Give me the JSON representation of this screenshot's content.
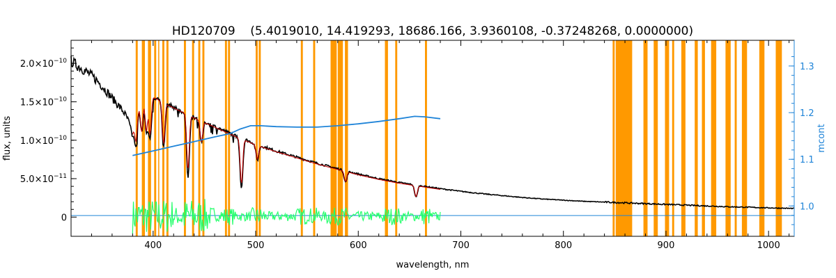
{
  "chart_data": {
    "type": "line",
    "title": "HD120709    (5.4019010, 14.419293, 18686.166, 3.9360108, -0.37248268, 0.0000000)",
    "xlabel": "wavelength, nm",
    "ylabel": "flux, units",
    "y2label": "mcont",
    "xlim": [
      320,
      1025
    ],
    "ylim": [
      -2.5e-11,
      2.3e-10
    ],
    "y2lim": [
      0.935,
      1.355
    ],
    "x_ticks": [
      400,
      500,
      600,
      700,
      800,
      900,
      1000
    ],
    "y_ticks": [
      {
        "value": 0,
        "mantissa": "0",
        "exp": ""
      },
      {
        "value": 5e-11,
        "mantissa": "5.0×10",
        "exp": "−11"
      },
      {
        "value": 1e-10,
        "mantissa": "1.0×10",
        "exp": "−10"
      },
      {
        "value": 1.5e-10,
        "mantissa": "1.5×10",
        "exp": "−10"
      },
      {
        "value": 2e-10,
        "mantissa": "2.0×10",
        "exp": "−10"
      }
    ],
    "y2_ticks": [
      {
        "value": 1.0,
        "label": "1.0"
      },
      {
        "value": 1.1,
        "label": "1.1"
      },
      {
        "value": 1.2,
        "label": "1.2"
      },
      {
        "value": 1.3,
        "label": "1.3"
      }
    ],
    "masked_regions": [
      [
        383,
        385
      ],
      [
        389,
        392
      ],
      [
        395,
        398
      ],
      [
        401,
        403
      ],
      [
        405,
        406
      ],
      [
        409,
        411
      ],
      [
        413,
        415
      ],
      [
        430,
        432
      ],
      [
        438,
        440
      ],
      [
        444,
        446
      ],
      [
        448,
        450
      ],
      [
        470,
        472
      ],
      [
        473,
        475
      ],
      [
        500,
        502
      ],
      [
        503,
        505
      ],
      [
        544,
        546
      ],
      [
        556,
        558
      ],
      [
        573,
        579
      ],
      [
        580,
        585
      ],
      [
        587,
        590
      ],
      [
        626,
        629
      ],
      [
        636,
        638
      ],
      [
        665,
        667
      ],
      [
        848,
        850
      ],
      [
        851,
        867
      ],
      [
        878,
        882
      ],
      [
        888,
        892
      ],
      [
        899,
        903
      ],
      [
        906,
        908
      ],
      [
        915,
        919
      ],
      [
        928,
        931
      ],
      [
        935,
        938
      ],
      [
        944,
        949
      ],
      [
        958,
        963
      ],
      [
        967,
        969
      ],
      [
        974,
        979
      ],
      [
        991,
        996
      ],
      [
        1007,
        1013
      ]
    ],
    "series": [
      {
        "role": "observed",
        "color": "#000000",
        "points": [
          [
            320,
            2.03e-10
          ],
          [
            325,
            1.98e-10
          ],
          [
            330,
            1.94e-10
          ],
          [
            335,
            1.89e-10
          ],
          [
            340,
            1.84e-10
          ],
          [
            345,
            1.78e-10
          ],
          [
            350,
            1.71e-10
          ],
          [
            355,
            1.63e-10
          ],
          [
            360,
            1.55e-10
          ],
          [
            365,
            1.47e-10
          ],
          [
            370,
            1.39e-10
          ],
          [
            373,
            1.33e-10
          ],
          [
            376,
            1.25e-10
          ],
          [
            378,
            1.15e-10
          ],
          [
            380,
            1.05e-10
          ],
          [
            382,
            1.15e-10
          ],
          [
            385,
            1.4e-10
          ],
          [
            388,
            1.55e-10
          ],
          [
            392,
            1.62e-10
          ],
          [
            396,
            1.58e-10
          ],
          [
            400,
            1.57e-10
          ],
          [
            410,
            1.5e-10
          ],
          [
            420,
            1.43e-10
          ],
          [
            430,
            1.36e-10
          ],
          [
            440,
            1.3e-10
          ],
          [
            450,
            1.24e-10
          ],
          [
            460,
            1.18e-10
          ],
          [
            470,
            1.12e-10
          ],
          [
            480,
            1.06e-10
          ],
          [
            490,
            1.01e-10
          ],
          [
            500,
            9.5e-11
          ],
          [
            520,
            8.6e-11
          ],
          [
            540,
            7.8e-11
          ],
          [
            560,
            7e-11
          ],
          [
            580,
            6.3e-11
          ],
          [
            600,
            5.6e-11
          ],
          [
            620,
            5e-11
          ],
          [
            640,
            4.5e-11
          ],
          [
            660,
            4.1e-11
          ],
          [
            680,
            3.7e-11
          ],
          [
            700,
            3.35e-11
          ],
          [
            720,
            3.05e-11
          ],
          [
            740,
            2.8e-11
          ],
          [
            760,
            2.55e-11
          ],
          [
            780,
            2.35e-11
          ],
          [
            800,
            2.2e-11
          ],
          [
            820,
            2.05e-11
          ],
          [
            840,
            1.95e-11
          ],
          [
            860,
            1.85e-11
          ],
          [
            880,
            1.75e-11
          ],
          [
            900,
            1.65e-11
          ],
          [
            920,
            1.55e-11
          ],
          [
            940,
            1.45e-11
          ],
          [
            960,
            1.35e-11
          ],
          [
            980,
            1.28e-11
          ],
          [
            1000,
            1.2e-11
          ],
          [
            1025,
            1.12e-11
          ]
        ],
        "absorption": [
          [
            383.5,
            3.5e-11
          ],
          [
            388.9,
            4.5e-11
          ],
          [
            393.4,
            5e-11
          ],
          [
            397.0,
            5.5e-11
          ],
          [
            410.2,
            6e-11
          ],
          [
            434.0,
            8e-11
          ],
          [
            447.1,
            3e-11
          ],
          [
            486.1,
            6.5e-11
          ],
          [
            501.6,
            2e-11
          ],
          [
            587.6,
            1.5e-11
          ],
          [
            656.3,
            1.6e-11
          ]
        ]
      },
      {
        "role": "model",
        "color": "#c00000",
        "points": [
          [
            380,
            1.08e-10
          ],
          [
            385,
            1.4e-10
          ],
          [
            390,
            1.55e-10
          ],
          [
            395,
            1.58e-10
          ],
          [
            400,
            1.56e-10
          ],
          [
            420,
            1.42e-10
          ],
          [
            440,
            1.29e-10
          ],
          [
            460,
            1.17e-10
          ],
          [
            480,
            1.05e-10
          ],
          [
            500,
            9.4e-11
          ],
          [
            520,
            8.5e-11
          ],
          [
            540,
            7.7e-11
          ],
          [
            560,
            6.9e-11
          ],
          [
            580,
            6.2e-11
          ],
          [
            600,
            5.5e-11
          ],
          [
            620,
            4.9e-11
          ],
          [
            640,
            4.4e-11
          ],
          [
            660,
            4e-11
          ],
          [
            680,
            3.6e-11
          ]
        ]
      },
      {
        "role": "mcont",
        "axis": "y2",
        "color": "#1f84d8",
        "points": [
          [
            380,
            1.108
          ],
          [
            400,
            1.118
          ],
          [
            420,
            1.128
          ],
          [
            440,
            1.138
          ],
          [
            460,
            1.148
          ],
          [
            475,
            1.155
          ],
          [
            485,
            1.165
          ],
          [
            495,
            1.172
          ],
          [
            505,
            1.172
          ],
          [
            520,
            1.17
          ],
          [
            540,
            1.169
          ],
          [
            560,
            1.169
          ],
          [
            580,
            1.172
          ],
          [
            600,
            1.176
          ],
          [
            620,
            1.181
          ],
          [
            640,
            1.187
          ],
          [
            655,
            1.192
          ],
          [
            665,
            1.191
          ],
          [
            680,
            1.187
          ]
        ]
      },
      {
        "role": "residual",
        "color": "#22ff6a",
        "range": [
          380,
          680
        ],
        "baseline": 1e-12,
        "amplitude": 9e-12
      },
      {
        "role": "zero-line",
        "color": "#1f84d8",
        "points": [
          [
            320,
            2e-12
          ],
          [
            1025,
            2e-12
          ]
        ]
      }
    ],
    "grid": false,
    "legend": "none"
  }
}
